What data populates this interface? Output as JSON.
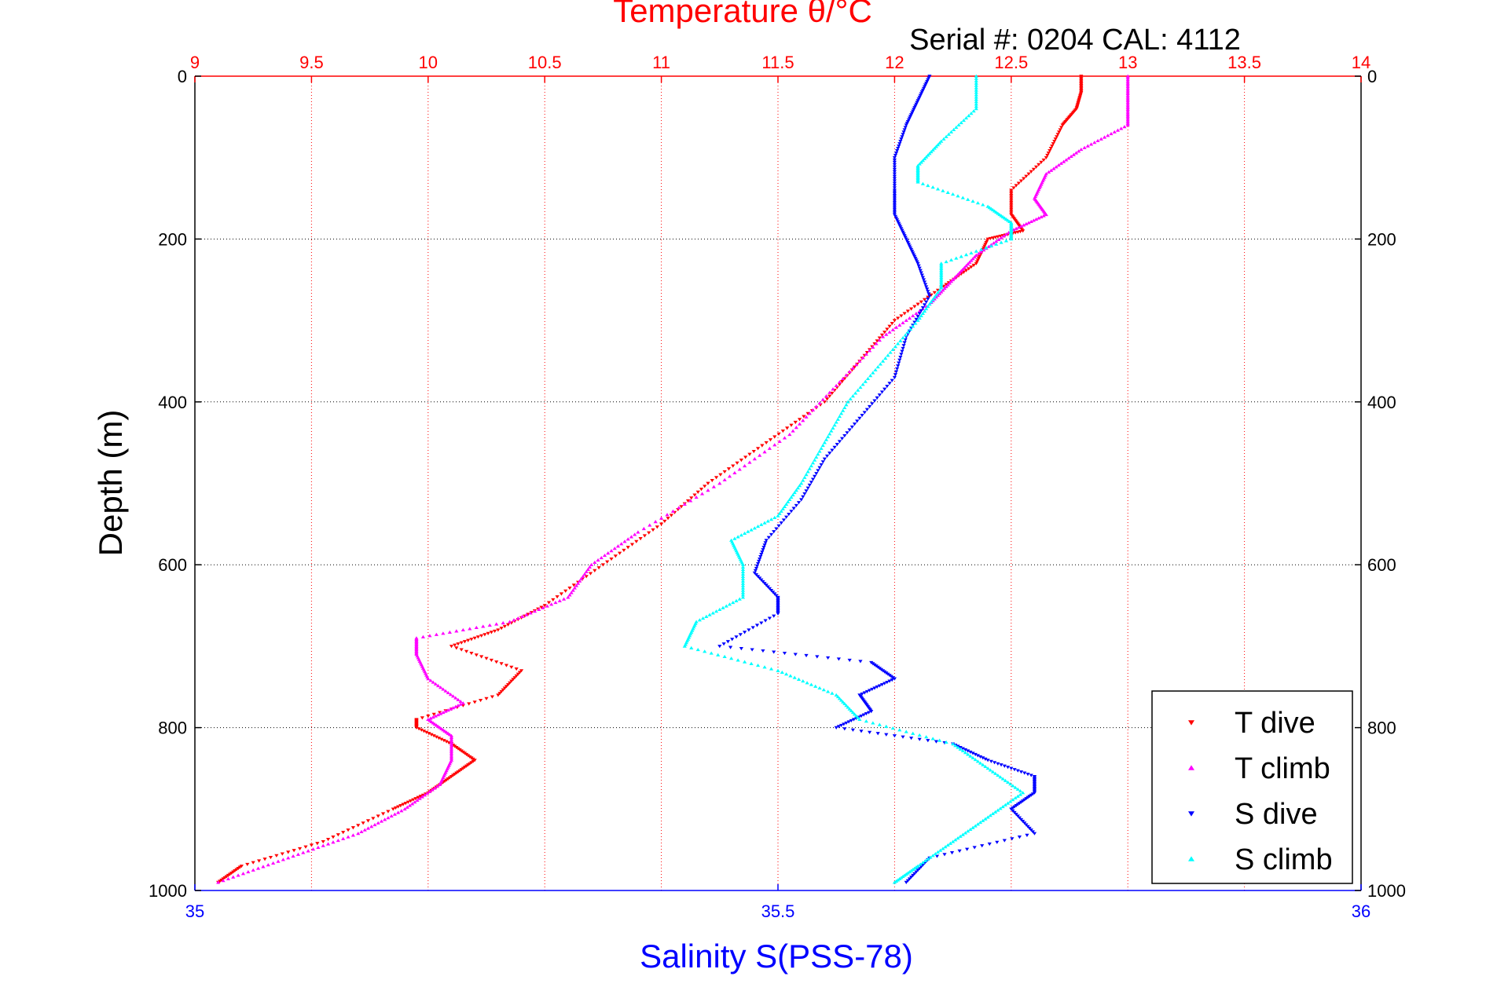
{
  "chart_data": {
    "type": "scatter",
    "title": "Temperature θ/°C",
    "subtitle": "Serial #: 0204  CAL: 4112",
    "ylabel": "Depth (m)",
    "xlabel": "Salinity S(PSS-78)",
    "temperature_axis": {
      "range": [
        9,
        14
      ],
      "ticks": [
        "9",
        "9.5",
        "10",
        "10.5",
        "11",
        "11.5",
        "12",
        "12.5",
        "13",
        "13.5",
        "14"
      ],
      "color": "#ff0000"
    },
    "salinity_axis": {
      "range": [
        35,
        36
      ],
      "ticks": [
        "35",
        "35.5",
        "36"
      ],
      "color": "#0000ff"
    },
    "depth_axis": {
      "range": [
        0,
        1000
      ],
      "reversed": true,
      "ticks": [
        "0",
        "200",
        "400",
        "600",
        "800",
        "1000"
      ]
    },
    "grid": true,
    "legend_position": "bottom-right",
    "series": [
      {
        "name": "T dive",
        "axis": "temperature",
        "color": "#ff0000",
        "marker": "triangle-down",
        "depth": [
          0,
          20,
          40,
          60,
          100,
          140,
          170,
          190,
          200,
          230,
          260,
          300,
          350,
          400,
          450,
          500,
          550,
          600,
          650,
          680,
          700,
          730,
          760,
          790,
          800,
          820,
          840,
          860,
          880,
          900,
          940,
          970,
          990
        ],
        "values": [
          12.8,
          12.8,
          12.78,
          12.72,
          12.65,
          12.5,
          12.5,
          12.55,
          12.4,
          12.35,
          12.2,
          12.0,
          11.85,
          11.7,
          11.45,
          11.2,
          11.0,
          10.75,
          10.5,
          10.3,
          10.1,
          10.4,
          10.3,
          9.95,
          9.95,
          10.1,
          10.2,
          10.1,
          10.0,
          9.85,
          9.55,
          9.2,
          9.1
        ]
      },
      {
        "name": "T climb",
        "axis": "temperature",
        "color": "#ff00ff",
        "marker": "triangle-up",
        "depth": [
          0,
          30,
          60,
          90,
          120,
          150,
          170,
          190,
          220,
          250,
          280,
          320,
          380,
          440,
          500,
          560,
          600,
          640,
          670,
          690,
          710,
          740,
          770,
          790,
          810,
          840,
          870,
          900,
          930,
          960,
          990
        ],
        "values": [
          13.0,
          13.0,
          13.0,
          12.8,
          12.65,
          12.6,
          12.65,
          12.5,
          12.35,
          12.25,
          12.15,
          11.95,
          11.75,
          11.55,
          11.25,
          10.9,
          10.7,
          10.6,
          10.35,
          9.95,
          9.95,
          10.0,
          10.15,
          10.0,
          10.1,
          10.1,
          10.05,
          9.9,
          9.7,
          9.4,
          9.1
        ]
      },
      {
        "name": "S dive",
        "axis": "salinity",
        "color": "#0000ff",
        "marker": "triangle-down",
        "depth": [
          0,
          30,
          60,
          100,
          140,
          170,
          200,
          230,
          270,
          320,
          370,
          420,
          470,
          520,
          570,
          610,
          640,
          660,
          700,
          720,
          740,
          760,
          780,
          800,
          820,
          840,
          860,
          880,
          900,
          930,
          960,
          990
        ],
        "values": [
          35.63,
          35.62,
          35.61,
          35.6,
          35.6,
          35.6,
          35.61,
          35.62,
          35.63,
          35.61,
          35.6,
          35.57,
          35.54,
          35.52,
          35.49,
          35.48,
          35.5,
          35.5,
          35.45,
          35.58,
          35.6,
          35.57,
          35.58,
          35.55,
          35.65,
          35.68,
          35.72,
          35.72,
          35.7,
          35.72,
          35.63,
          35.61
        ]
      },
      {
        "name": "S climb",
        "axis": "salinity",
        "color": "#00ffff",
        "marker": "triangle-up",
        "depth": [
          0,
          40,
          80,
          110,
          130,
          160,
          180,
          200,
          230,
          260,
          300,
          350,
          400,
          450,
          500,
          540,
          570,
          600,
          640,
          670,
          700,
          730,
          760,
          790,
          820,
          850,
          880,
          910,
          940,
          970,
          990
        ],
        "values": [
          35.67,
          35.67,
          35.64,
          35.62,
          35.62,
          35.68,
          35.7,
          35.7,
          35.64,
          35.64,
          35.62,
          35.59,
          35.56,
          35.54,
          35.52,
          35.5,
          35.46,
          35.47,
          35.47,
          35.43,
          35.42,
          35.5,
          35.55,
          35.57,
          35.65,
          35.68,
          35.71,
          35.68,
          35.65,
          35.62,
          35.6
        ]
      }
    ]
  }
}
